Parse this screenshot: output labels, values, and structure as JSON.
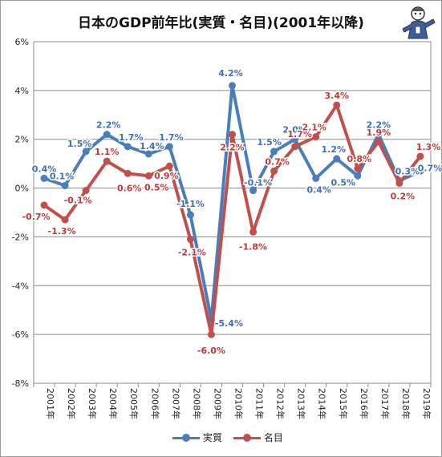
{
  "chart_data": {
    "type": "line",
    "title": "日本のGDP前年比(実質・名目)(2001年以降)",
    "categories": [
      "2001年",
      "2002年",
      "2003年",
      "2004年",
      "2005年",
      "2006年",
      "2007年",
      "2008年",
      "2009年",
      "2010年",
      "2011年",
      "2012年",
      "2013年",
      "2014年",
      "2015年",
      "2016年",
      "2017年",
      "2018年",
      "2019年"
    ],
    "ylim": [
      -8,
      6
    ],
    "yticks": [
      "-8%",
      "-6%",
      "-4%",
      "-2%",
      "0%",
      "2%",
      "4%",
      "6%"
    ],
    "grid": true,
    "legend": "bottom",
    "series": [
      {
        "name": "実質",
        "color": "#4a7ebb",
        "values": [
          0.4,
          0.1,
          1.5,
          2.2,
          1.7,
          1.4,
          1.7,
          -1.1,
          -5.4,
          4.2,
          -0.1,
          1.5,
          2.0,
          0.4,
          1.2,
          0.5,
          2.2,
          0.3,
          0.7
        ],
        "labels": [
          "0.4%",
          "0.1%",
          "1.5%",
          "2.2%",
          "1.7%",
          "1.4%",
          "1.7%",
          "-1.1%",
          "-5.4%",
          "4.2%",
          "-0.1%",
          "1.5%",
          "2.0%",
          "0.4%",
          "1.2%",
          "0.5%",
          "2.2%",
          "0.3%",
          "0.7%"
        ]
      },
      {
        "name": "名目",
        "color": "#c0504d",
        "values": [
          -0.7,
          -1.3,
          -0.1,
          1.1,
          0.6,
          0.5,
          0.9,
          -2.1,
          -6.0,
          2.2,
          -1.8,
          0.7,
          1.7,
          2.1,
          3.4,
          0.8,
          1.9,
          0.2,
          1.3
        ],
        "labels": [
          "-0.7%",
          "-1.3%",
          "-0.1%",
          "1.1%",
          "0.6%",
          "0.5%",
          "0.9%",
          "-2.1%",
          "-6.0%",
          "2.2%",
          "-1.8%",
          "0.7%",
          "1.7%",
          "2.1%",
          "3.4%",
          "0.8%",
          "1.9%",
          "0.2%",
          "1.3%"
        ]
      }
    ]
  },
  "mascot_icon": "figure-mascot-icon"
}
